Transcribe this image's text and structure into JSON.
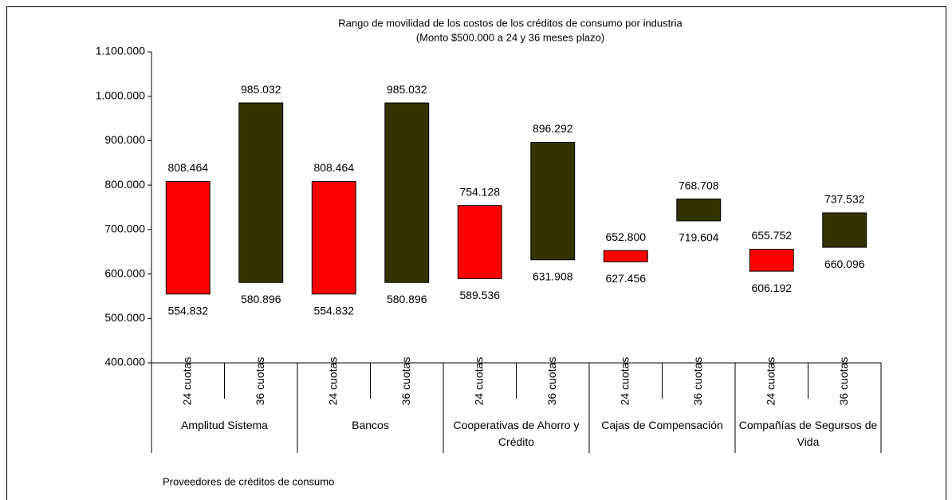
{
  "chart_data": {
    "type": "floating-bar",
    "title": "Rango de movilidad de los costos de los créditos de consumo por industria",
    "subtitle": "(Monto $500.000 a 24 y 36 meses plazo)",
    "x_label": "Proveedores de créditos de consumo",
    "groups": [
      "Amplitud Sistema",
      "Bancos",
      "Cooperativas de Ahorro y Crédito",
      "Cajas de Compensación",
      "Compañías de Segursos de Vida"
    ],
    "series": [
      {
        "name": "24 cuotas",
        "color": "#ff0000",
        "values": [
          [
            554832,
            808464
          ],
          [
            554832,
            808464
          ],
          [
            589536,
            754128
          ],
          [
            627456,
            652800
          ],
          [
            606192,
            655752
          ]
        ],
        "value_labels": [
          [
            "554.832",
            "808.464"
          ],
          [
            "554.832",
            "808.464"
          ],
          [
            "589.536",
            "754.128"
          ],
          [
            "627.456",
            "652.800"
          ],
          [
            "606.192",
            "655.752"
          ]
        ]
      },
      {
        "name": "36 cuotas",
        "color": "#333300",
        "values": [
          [
            580896,
            985032
          ],
          [
            580896,
            985032
          ],
          [
            631908,
            896292
          ],
          [
            719604,
            768708
          ],
          [
            660096,
            737532
          ]
        ],
        "value_labels": [
          [
            "580.896",
            "985.032"
          ],
          [
            "580.896",
            "985.032"
          ],
          [
            "631.908",
            "896.292"
          ],
          [
            "719.604",
            "768.708"
          ],
          [
            "660.096",
            "737.532"
          ]
        ]
      }
    ],
    "ylim": [
      400000,
      1100000
    ],
    "yticks": [
      {
        "value": 400000,
        "label": "400.000"
      },
      {
        "value": 500000,
        "label": "500.000"
      },
      {
        "value": 600000,
        "label": "600.000"
      },
      {
        "value": 700000,
        "label": "700.000"
      },
      {
        "value": 800000,
        "label": "800.000"
      },
      {
        "value": 900000,
        "label": "900.000"
      },
      {
        "value": 1000000,
        "label": "1.000.000"
      },
      {
        "value": 1100000,
        "label": "1.100.000"
      }
    ],
    "grid": false
  }
}
